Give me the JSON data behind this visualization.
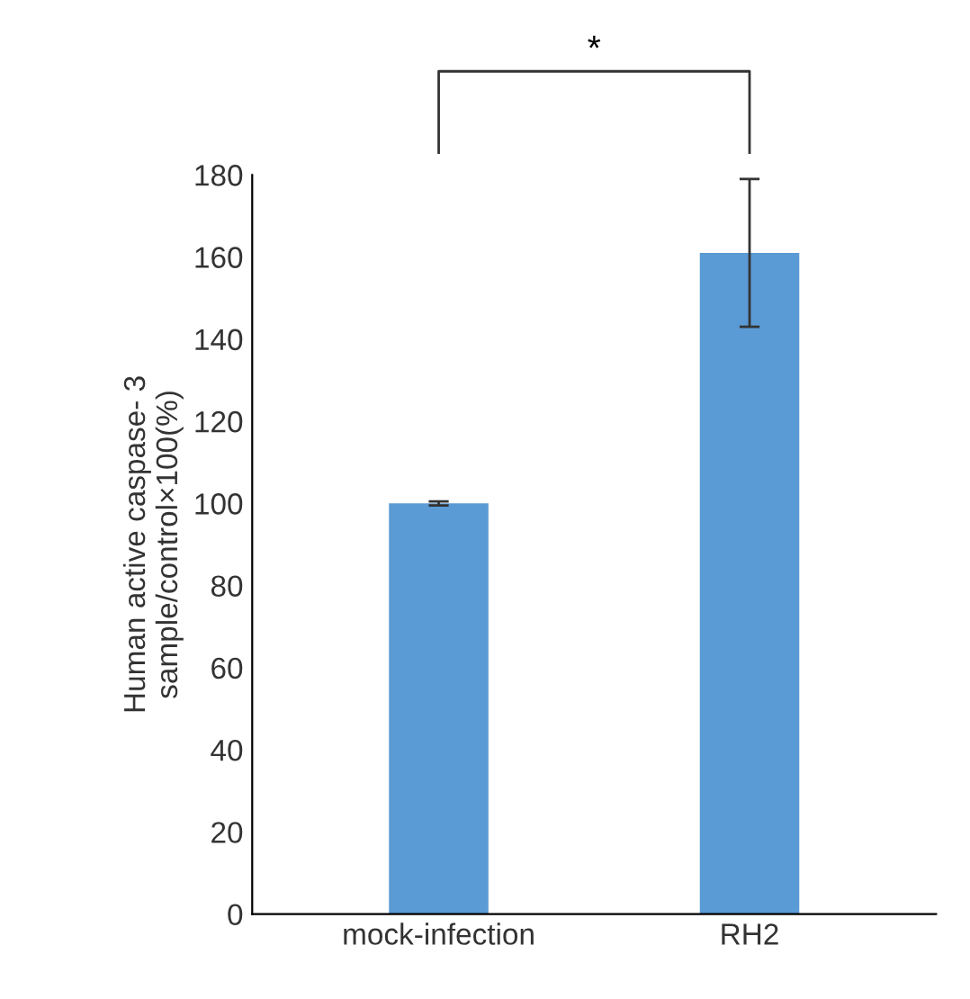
{
  "chart_data": {
    "type": "bar",
    "ylabel": "Human active caspase- 3\nsample/control×100(%)",
    "categories": [
      "mock-infection",
      "RH2"
    ],
    "values": [
      100,
      161
    ],
    "errors": [
      0.5,
      18
    ],
    "color": "#5b9bd5",
    "ylim": [
      0,
      180
    ],
    "yticks": [
      0,
      20,
      40,
      60,
      80,
      100,
      120,
      140,
      160,
      180
    ],
    "grid": false,
    "annotations": [
      "*"
    ]
  }
}
